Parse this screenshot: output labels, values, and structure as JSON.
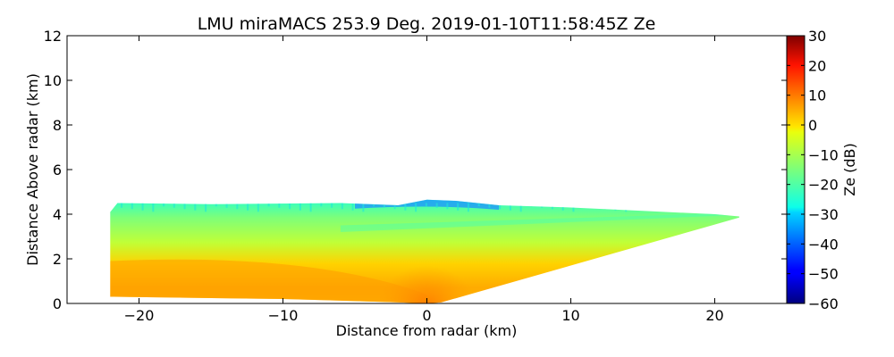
{
  "chart_data": {
    "type": "heatmap",
    "title": "LMU miraMACS 253.9 Deg. 2019-01-10T11:58:45Z  Ze",
    "xlabel": "Distance from radar (km)",
    "ylabel": "Distance Above radar  (km)",
    "xlim": [
      -25,
      25
    ],
    "ylim": [
      0,
      12
    ],
    "x_ticks": [
      -20,
      -10,
      0,
      10,
      20
    ],
    "x_tick_labels": [
      "−20",
      "−10",
      "0",
      "10",
      "20"
    ],
    "y_ticks": [
      0,
      2,
      4,
      6,
      8,
      10,
      12
    ],
    "y_tick_labels": [
      "0",
      "2",
      "4",
      "6",
      "8",
      "10",
      "12"
    ],
    "grid": false,
    "colorbar": {
      "label": "Ze (dB)",
      "range": [
        -60,
        30
      ],
      "ticks": [
        -60,
        -50,
        -40,
        -30,
        -20,
        -10,
        0,
        10,
        20,
        30
      ],
      "tick_labels": [
        "−60",
        "−50",
        "−40",
        "−30",
        "−20",
        "−10",
        "0",
        "10",
        "20",
        "30"
      ],
      "colormap": "jet"
    },
    "field_description": "RHI reflectivity scan: echo region bounded by heights ~0.3–4.5 km on the left (x ≈ -22 km) to ~3.9 km on the right (x ≈ 21.7 km); weak Ze (-35 to -25 dB, cyan/blue) at cloud top near 4.3–4.7 km, moderate Ze (-20 to -10 dB, green/yellow) through 2–4 km, stronger Ze (0 to 10 dB, orange) in lowest 2 km with max near x=0.",
    "echo_region": {
      "top_profile": [
        [
          -22,
          4.1
        ],
        [
          -21.5,
          4.5
        ],
        [
          -15,
          4.45
        ],
        [
          -6,
          4.5
        ],
        [
          -2,
          4.4
        ],
        [
          0,
          4.65
        ],
        [
          2,
          4.6
        ],
        [
          5,
          4.4
        ],
        [
          10,
          4.3
        ],
        [
          15,
          4.15
        ],
        [
          20,
          4.0
        ],
        [
          21.7,
          3.9
        ]
      ],
      "bottom_profile": [
        [
          -22,
          0.3
        ],
        [
          -10,
          0.2
        ],
        [
          -2,
          0.05
        ],
        [
          0,
          0
        ],
        [
          1,
          0.05
        ],
        [
          21.7,
          3.85
        ]
      ]
    }
  }
}
